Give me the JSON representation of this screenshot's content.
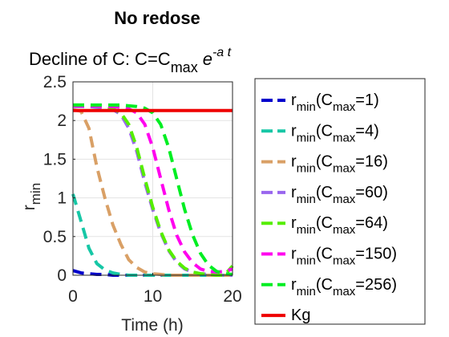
{
  "chart_data": {
    "type": "line",
    "title": "No redose",
    "subtitle": {
      "prefix": "Decline of C: C=C",
      "sub": "max",
      "exp_base": "e",
      "exp": "-a t"
    },
    "xlabel": "Time (h)",
    "ylabel": {
      "base": "r",
      "sub": "min"
    },
    "xlim": [
      0,
      20
    ],
    "ylim": [
      0,
      2.5
    ],
    "xticks": [
      0,
      10,
      20
    ],
    "xtick_labels": [
      "0",
      "10",
      "20"
    ],
    "yticks": [
      0,
      0.5,
      1,
      1.5,
      2,
      2.5
    ],
    "ytick_labels": [
      "0",
      "0.5",
      "1",
      "1.5",
      "2",
      "2.5"
    ],
    "grid": true,
    "legend_placement": "outside-right",
    "x": [
      0,
      1,
      2,
      3,
      4,
      5,
      6,
      7,
      8,
      9,
      10,
      11,
      12,
      13,
      14,
      15,
      16,
      17,
      18,
      19,
      20
    ],
    "series": [
      {
        "name": "rmin(Cmax=1)",
        "legend": {
          "base": "r",
          "sub": "min",
          "mid": "(C",
          "sub2": "max",
          "tail": "=1)"
        },
        "color": "#0000cc",
        "dash": true,
        "values": [
          0.06,
          0.03,
          0.02,
          0.01,
          0.01,
          0,
          0,
          0,
          0,
          0,
          0,
          0,
          0,
          0,
          0,
          0,
          0,
          0,
          0,
          0,
          0
        ]
      },
      {
        "name": "rmin(Cmax=4)",
        "legend": {
          "base": "r",
          "sub": "min",
          "mid": "(C",
          "sub2": "max",
          "tail": "=4)"
        },
        "color": "#16c7a6",
        "dash": true,
        "values": [
          1.05,
          0.7,
          0.35,
          0.15,
          0.07,
          0.03,
          0.01,
          0,
          0,
          0,
          0,
          0,
          0,
          0,
          0,
          0,
          0,
          0,
          0,
          0,
          0
        ]
      },
      {
        "name": "rmin(Cmax=16)",
        "legend": {
          "base": "r",
          "sub": "min",
          "mid": "(C",
          "sub2": "max",
          "tail": "=16)"
        },
        "color": "#d9a066",
        "dash": true,
        "values": [
          2.14,
          2.12,
          1.9,
          1.4,
          1.0,
          0.65,
          0.4,
          0.2,
          0.1,
          0.04,
          0.02,
          0.01,
          0,
          0,
          0,
          0,
          0,
          0,
          0,
          0,
          0
        ]
      },
      {
        "name": "rmin(Cmax=60)",
        "legend": {
          "base": "r",
          "sub": "min",
          "mid": "(C",
          "sub2": "max",
          "tail": "=60)"
        },
        "color": "#9966ee",
        "dash": true,
        "values": [
          2.18,
          2.18,
          2.18,
          2.17,
          2.16,
          2.14,
          2.08,
          1.9,
          1.6,
          1.2,
          0.85,
          0.55,
          0.32,
          0.17,
          0.08,
          0.04,
          0.02,
          0.01,
          0,
          0,
          0
        ]
      },
      {
        "name": "rmin(Cmax=64)",
        "legend": {
          "base": "r",
          "sub": "min",
          "mid": "(C",
          "sub2": "max",
          "tail": "=64)"
        },
        "color": "#55ee00",
        "dash": true,
        "values": [
          2.2,
          2.2,
          2.2,
          2.19,
          2.18,
          2.15,
          2.1,
          1.95,
          1.65,
          1.25,
          0.88,
          0.57,
          0.33,
          0.18,
          0.09,
          0.04,
          0.02,
          0.01,
          0,
          0,
          0.12
        ]
      },
      {
        "name": "rmin(Cmax=150)",
        "legend": {
          "base": "r",
          "sub": "min",
          "mid": "(C",
          "sub2": "max",
          "tail": "=150)"
        },
        "color": "#ff00ee",
        "dash": true,
        "values": [
          2.19,
          2.19,
          2.19,
          2.19,
          2.18,
          2.18,
          2.17,
          2.15,
          2.1,
          1.95,
          1.65,
          1.25,
          0.85,
          0.52,
          0.3,
          0.16,
          0.08,
          0.05,
          0.04,
          0.05,
          0.08
        ]
      },
      {
        "name": "rmin(Cmax=256)",
        "legend": {
          "base": "r",
          "sub": "min",
          "mid": "(C",
          "sub2": "max",
          "tail": "=256)"
        },
        "color": "#00ee22",
        "dash": true,
        "values": [
          2.2,
          2.2,
          2.2,
          2.2,
          2.2,
          2.2,
          2.2,
          2.19,
          2.18,
          2.16,
          2.1,
          1.95,
          1.65,
          1.25,
          0.85,
          0.52,
          0.28,
          0.13,
          0.05,
          0.02,
          0.01
        ]
      },
      {
        "name": "Kg",
        "legend": {
          "base": "Kg"
        },
        "color": "#ee0000",
        "dash": false,
        "values": [
          2.13,
          2.13,
          2.13,
          2.13,
          2.13,
          2.13,
          2.13,
          2.13,
          2.13,
          2.13,
          2.13,
          2.13,
          2.13,
          2.13,
          2.13,
          2.13,
          2.13,
          2.13,
          2.13,
          2.13,
          2.13
        ]
      }
    ]
  }
}
